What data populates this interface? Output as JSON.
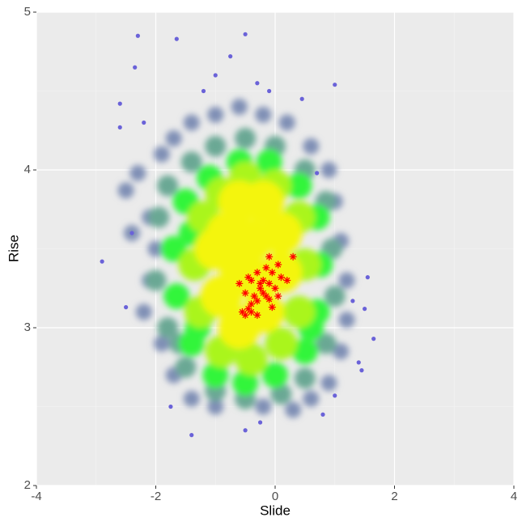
{
  "chart_data": {
    "type": "scatter",
    "x_label": "Slide",
    "y_label": "Rise",
    "xlim": [
      -4,
      4
    ],
    "ylim": [
      2,
      5
    ],
    "xticks": [
      -4,
      -2,
      0,
      2,
      4
    ],
    "yticks": [
      2,
      3,
      4,
      5
    ],
    "xminor": [
      -3,
      -1,
      1,
      3
    ],
    "yminor": [
      2.5,
      3.5,
      4.5
    ],
    "grid": true,
    "series": [
      {
        "color": "#7f8fb5",
        "size": 10,
        "marker": "dot",
        "x": [
          -2.3,
          -2.5,
          -2.1,
          -2.0,
          -2.1,
          -2.2,
          -1.9,
          -1.7,
          -1.4,
          -1.0,
          -0.2,
          0.3,
          0.6,
          0.9,
          1.1,
          1.2,
          1.2,
          1.1,
          1.0,
          0.9,
          0.6,
          0.2,
          -0.2,
          -0.6,
          -1.0,
          -1.4,
          -1.7,
          -1.9,
          -2.4
        ],
        "values": [
          3.98,
          3.87,
          3.7,
          3.5,
          3.3,
          3.1,
          2.9,
          2.7,
          2.55,
          2.5,
          2.5,
          2.48,
          2.55,
          2.65,
          2.85,
          3.05,
          3.3,
          3.55,
          3.8,
          4.0,
          4.15,
          4.3,
          4.35,
          4.4,
          4.35,
          4.3,
          4.2,
          4.1,
          3.6
        ]
      },
      {
        "color": "#6aa894",
        "size": 13,
        "marker": "dot",
        "x": [
          -1.8,
          -1.95,
          -2.0,
          -1.8,
          -1.5,
          -1.0,
          -0.5,
          0.1,
          0.5,
          0.85,
          1.0,
          0.95,
          0.85,
          0.5,
          0.0,
          -0.5,
          -1.0,
          -1.4,
          -1.7,
          -1.6
        ],
        "values": [
          3.9,
          3.7,
          3.3,
          3.0,
          2.75,
          2.6,
          2.55,
          2.58,
          2.68,
          2.9,
          3.2,
          3.5,
          3.8,
          4.0,
          4.15,
          4.2,
          4.15,
          4.05,
          3.2,
          2.9
        ]
      },
      {
        "color": "#33f53a",
        "size": 16,
        "marker": "dot",
        "x": [
          -1.5,
          -1.7,
          -1.65,
          -1.4,
          -1.0,
          -0.5,
          0.0,
          0.5,
          0.7,
          0.75,
          0.7,
          0.4,
          -0.1,
          -0.6,
          -1.1,
          -1.4,
          0.6,
          -1.3
        ],
        "values": [
          3.8,
          3.5,
          3.2,
          2.9,
          2.7,
          2.65,
          2.7,
          2.85,
          3.1,
          3.4,
          3.7,
          3.9,
          4.05,
          4.05,
          3.95,
          3.6,
          3.0,
          3.0
        ]
      },
      {
        "color": "#aaf51a",
        "size": 20,
        "marker": "dot",
        "x": [
          -1.2,
          -1.35,
          -1.25,
          -0.9,
          -0.4,
          0.1,
          0.4,
          0.5,
          0.4,
          0.0,
          -0.5,
          -0.9
        ],
        "values": [
          3.7,
          3.4,
          3.1,
          2.85,
          2.8,
          2.9,
          3.1,
          3.4,
          3.7,
          3.9,
          3.95,
          3.85
        ]
      },
      {
        "color": "#f4f50e",
        "size": 26,
        "marker": "dot",
        "x": [
          -1.0,
          -0.9,
          -0.6,
          -0.2,
          0.1,
          0.1,
          -0.2,
          -0.6,
          -0.6,
          -0.4,
          -0.8,
          -0.3
        ],
        "values": [
          3.5,
          3.2,
          3.0,
          3.1,
          3.35,
          3.6,
          3.8,
          3.8,
          3.4,
          3.55,
          3.6,
          3.3
        ]
      },
      {
        "color": "#6a62d8",
        "size": 2.6,
        "marker": "dot",
        "x": [
          -2.3,
          -1.65,
          -0.5,
          -2.35,
          -0.75,
          -1.0,
          -0.3,
          1.0,
          -2.6,
          -2.6,
          -2.2,
          -2.9,
          -2.5,
          -1.4,
          1.65,
          1.45,
          1.5,
          1.55,
          1.3,
          -1.75,
          -0.5,
          -0.25,
          0.8,
          1.0,
          0.45,
          -1.2,
          -0.1,
          0.7,
          -2.4,
          1.4
        ],
        "values": [
          4.85,
          4.83,
          4.86,
          4.65,
          4.72,
          4.6,
          4.55,
          4.54,
          4.42,
          4.27,
          4.3,
          3.42,
          3.13,
          2.32,
          2.93,
          2.73,
          3.12,
          3.32,
          3.17,
          2.5,
          2.35,
          2.4,
          2.45,
          2.57,
          4.45,
          4.5,
          4.5,
          3.98,
          3.6,
          2.78
        ]
      },
      {
        "color": "#ff0000",
        "size": 4.5,
        "marker": "star",
        "x": [
          -0.1,
          0.3,
          0.05,
          -0.15,
          -0.05,
          0.1,
          -0.3,
          -0.45,
          -0.6,
          -0.4,
          -0.2,
          -0.1,
          0.0,
          -0.25,
          -0.5,
          -0.35,
          -0.15,
          0.05,
          -0.4,
          -0.3,
          -0.1,
          -0.2,
          -0.45,
          -0.55,
          -0.5,
          -0.4,
          -0.3,
          0.2,
          -0.05,
          -0.25
        ],
        "values": [
          3.45,
          3.45,
          3.4,
          3.38,
          3.35,
          3.32,
          3.35,
          3.32,
          3.28,
          3.3,
          3.3,
          3.28,
          3.25,
          3.25,
          3.22,
          3.2,
          3.2,
          3.2,
          3.15,
          3.17,
          3.18,
          3.22,
          3.12,
          3.1,
          3.08,
          3.1,
          3.08,
          3.3,
          3.13,
          3.28
        ]
      }
    ]
  }
}
